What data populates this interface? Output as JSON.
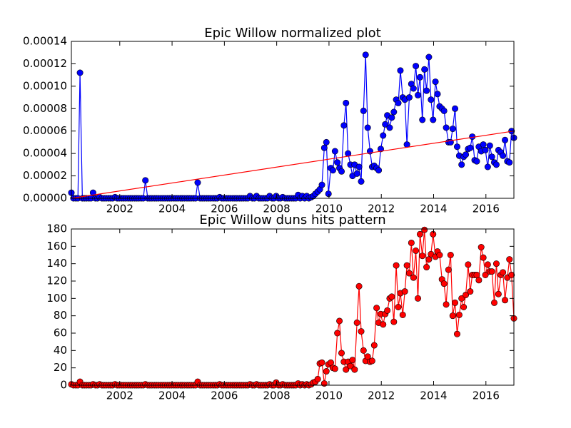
{
  "chart_data": [
    {
      "type": "line",
      "title": "Epic Willow normalized plot",
      "xlim": [
        2000.15,
        2017.07
      ],
      "xticks": [
        2002,
        2004,
        2006,
        2008,
        2010,
        2012,
        2014,
        2016
      ],
      "ylim": [
        0,
        0.00014
      ],
      "yticks": [
        {
          "value": 0,
          "label": "0.00000"
        },
        {
          "value": 2e-05,
          "label": "0.00002"
        },
        {
          "value": 4e-05,
          "label": "0.00004"
        },
        {
          "value": 6e-05,
          "label": "0.00006"
        },
        {
          "value": 8e-05,
          "label": "0.00008"
        },
        {
          "value": 0.0001,
          "label": "0.00010"
        },
        {
          "value": 0.00012,
          "label": "0.00012"
        },
        {
          "value": 0.00014,
          "label": "0.00014"
        }
      ],
      "x": [
        2000.15,
        2000.23,
        2000.32,
        2000.4,
        2000.48,
        2000.57,
        2000.65,
        2000.73,
        2000.82,
        2000.9,
        2000.98,
        2001.07,
        2001.15,
        2001.23,
        2001.32,
        2001.4,
        2001.48,
        2001.57,
        2001.65,
        2001.73,
        2001.82,
        2001.9,
        2001.98,
        2002.07,
        2002.15,
        2002.23,
        2002.32,
        2002.4,
        2002.48,
        2002.57,
        2002.65,
        2002.73,
        2002.82,
        2002.9,
        2002.98,
        2003.07,
        2003.15,
        2003.23,
        2003.32,
        2003.4,
        2003.48,
        2003.57,
        2003.65,
        2003.73,
        2003.82,
        2003.9,
        2003.98,
        2004.07,
        2004.15,
        2004.23,
        2004.32,
        2004.4,
        2004.48,
        2004.57,
        2004.65,
        2004.73,
        2004.82,
        2004.9,
        2004.98,
        2005.07,
        2005.15,
        2005.23,
        2005.32,
        2005.4,
        2005.48,
        2005.57,
        2005.65,
        2005.73,
        2005.82,
        2005.9,
        2005.98,
        2006.07,
        2006.15,
        2006.23,
        2006.32,
        2006.4,
        2006.48,
        2006.57,
        2006.65,
        2006.73,
        2006.82,
        2006.9,
        2006.98,
        2007.07,
        2007.15,
        2007.23,
        2007.32,
        2007.4,
        2007.48,
        2007.57,
        2007.65,
        2007.73,
        2007.82,
        2007.9,
        2007.98,
        2008.07,
        2008.15,
        2008.23,
        2008.32,
        2008.4,
        2008.48,
        2008.57,
        2008.65,
        2008.73,
        2008.82,
        2008.9,
        2008.98,
        2009.07,
        2009.15,
        2009.23,
        2009.32,
        2009.4,
        2009.48,
        2009.57,
        2009.65,
        2009.73,
        2009.82,
        2009.9,
        2009.98,
        2010.07,
        2010.15,
        2010.23,
        2010.32,
        2010.4,
        2010.48,
        2010.57,
        2010.65,
        2010.73,
        2010.82,
        2010.9,
        2010.98,
        2011.07,
        2011.15,
        2011.23,
        2011.32,
        2011.4,
        2011.48,
        2011.57,
        2011.65,
        2011.73,
        2011.82,
        2011.9,
        2011.98,
        2012.07,
        2012.15,
        2012.23,
        2012.32,
        2012.4,
        2012.48,
        2012.57,
        2012.65,
        2012.73,
        2012.82,
        2012.9,
        2012.98,
        2013.07,
        2013.15,
        2013.23,
        2013.32,
        2013.4,
        2013.48,
        2013.57,
        2013.65,
        2013.73,
        2013.82,
        2013.9,
        2013.98,
        2014.07,
        2014.15,
        2014.23,
        2014.32,
        2014.4,
        2014.48,
        2014.57,
        2014.65,
        2014.73,
        2014.82,
        2014.9,
        2014.98,
        2015.07,
        2015.15,
        2015.23,
        2015.32,
        2015.4,
        2015.48,
        2015.57,
        2015.65,
        2015.73,
        2015.82,
        2015.9,
        2015.98,
        2016.07,
        2016.15,
        2016.23,
        2016.32,
        2016.4,
        2016.48,
        2016.57,
        2016.65,
        2016.73,
        2016.82,
        2016.9,
        2016.98,
        2017.07
      ],
      "series": [
        {
          "color": "#0000ff",
          "marker": true,
          "values": [
            5e-06,
            0,
            0,
            0,
            0.000112,
            0,
            0,
            0,
            0,
            0,
            5e-06,
            0,
            0,
            1e-06,
            0,
            0,
            0,
            0,
            0,
            0,
            1e-06,
            0,
            0,
            0,
            0,
            0,
            0,
            0,
            0,
            0,
            0,
            0,
            0,
            0,
            1.6e-05,
            0,
            0,
            0,
            0,
            0,
            0,
            0,
            0,
            0,
            0,
            0,
            0,
            0,
            0,
            0,
            0,
            0,
            0,
            0,
            0,
            0,
            0,
            0,
            1.4e-05,
            0,
            0,
            0,
            0,
            0,
            0,
            0,
            0,
            0,
            1e-06,
            0,
            0,
            0,
            0,
            0,
            0,
            0,
            0,
            0,
            0,
            0,
            0,
            0,
            2e-06,
            0,
            0,
            2e-06,
            0,
            0,
            0,
            0,
            0,
            2e-06,
            0,
            0,
            2e-06,
            0,
            0,
            1e-06,
            0,
            0,
            0,
            0,
            0,
            0,
            3e-06,
            0,
            2e-06,
            0,
            2e-06,
            0,
            1e-06,
            2e-06,
            4e-06,
            6e-06,
            8e-06,
            1.2e-05,
            4.5e-05,
            5e-05,
            4e-06,
            2.7e-05,
            2.5e-05,
            4.2e-05,
            3.2e-05,
            2.7e-05,
            2.4e-05,
            6.5e-05,
            8.5e-05,
            4e-05,
            3e-05,
            2e-05,
            3e-05,
            2.2e-05,
            2.8e-05,
            1.5e-05,
            7.8e-05,
            0.000128,
            6.3e-05,
            4.2e-05,
            2.8e-05,
            2.9e-05,
            2.7e-05,
            2.5e-05,
            4.4e-05,
            5.6e-05,
            6.6e-05,
            7.4e-05,
            6.3e-05,
            7.2e-05,
            7.7e-05,
            8.8e-05,
            8.5e-05,
            0.000114,
            9e-05,
            8.8e-05,
            4.8e-05,
            9e-05,
            0.000102,
            9.8e-05,
            0.000118,
            9.2e-05,
            0.000108,
            7e-05,
            0.000115,
            9.6e-05,
            0.000126,
            8.8e-05,
            7e-05,
            0.000104,
            9.3e-05,
            8.2e-05,
            8e-05,
            7.8e-05,
            6.3e-05,
            5e-05,
            5e-05,
            6.2e-05,
            8e-05,
            4.6e-05,
            3.8e-05,
            3e-05,
            3.7e-05,
            3.9e-05,
            4.4e-05,
            4.5e-05,
            5.5e-05,
            3.4e-05,
            3.3e-05,
            4.6e-05,
            4.2e-05,
            4.8e-05,
            4.3e-05,
            2.8e-05,
            4.7e-05,
            3.7e-05,
            3.2e-05,
            3e-05,
            4.3e-05,
            4.1e-05,
            3.8e-05,
            5.2e-05,
            3.3e-05,
            3.2e-05,
            6e-05,
            5.4e-05
          ]
        },
        {
          "color": "#ff0000",
          "marker": false,
          "x": [
            2000.15,
            2017.07
          ],
          "values": [
            0,
            6e-05
          ]
        }
      ]
    },
    {
      "type": "line",
      "title": "Epic Willow duns hits pattern",
      "xlim": [
        2000.15,
        2017.07
      ],
      "xticks": [
        2002,
        2004,
        2006,
        2008,
        2010,
        2012,
        2014,
        2016
      ],
      "ylim": [
        0,
        180
      ],
      "yticks": [
        0,
        20,
        40,
        60,
        80,
        100,
        120,
        140,
        160,
        180
      ],
      "x": [
        2000.15,
        2000.23,
        2000.32,
        2000.4,
        2000.48,
        2000.57,
        2000.65,
        2000.73,
        2000.82,
        2000.9,
        2000.98,
        2001.07,
        2001.15,
        2001.23,
        2001.32,
        2001.4,
        2001.48,
        2001.57,
        2001.65,
        2001.73,
        2001.82,
        2001.9,
        2001.98,
        2002.07,
        2002.15,
        2002.23,
        2002.32,
        2002.4,
        2002.48,
        2002.57,
        2002.65,
        2002.73,
        2002.82,
        2002.9,
        2002.98,
        2003.07,
        2003.15,
        2003.23,
        2003.32,
        2003.4,
        2003.48,
        2003.57,
        2003.65,
        2003.73,
        2003.82,
        2003.9,
        2003.98,
        2004.07,
        2004.15,
        2004.23,
        2004.32,
        2004.4,
        2004.48,
        2004.57,
        2004.65,
        2004.73,
        2004.82,
        2004.9,
        2004.98,
        2005.07,
        2005.15,
        2005.23,
        2005.32,
        2005.4,
        2005.48,
        2005.57,
        2005.65,
        2005.73,
        2005.82,
        2005.9,
        2005.98,
        2006.07,
        2006.15,
        2006.23,
        2006.32,
        2006.4,
        2006.48,
        2006.57,
        2006.65,
        2006.73,
        2006.82,
        2006.9,
        2006.98,
        2007.07,
        2007.15,
        2007.23,
        2007.32,
        2007.4,
        2007.48,
        2007.57,
        2007.65,
        2007.73,
        2007.82,
        2007.9,
        2007.98,
        2008.07,
        2008.15,
        2008.23,
        2008.32,
        2008.4,
        2008.48,
        2008.57,
        2008.65,
        2008.73,
        2008.82,
        2008.9,
        2008.98,
        2009.07,
        2009.15,
        2009.23,
        2009.32,
        2009.4,
        2009.48,
        2009.57,
        2009.65,
        2009.73,
        2009.82,
        2009.9,
        2009.98,
        2010.07,
        2010.15,
        2010.23,
        2010.32,
        2010.4,
        2010.48,
        2010.57,
        2010.65,
        2010.73,
        2010.82,
        2010.9,
        2010.98,
        2011.07,
        2011.15,
        2011.23,
        2011.32,
        2011.4,
        2011.48,
        2011.57,
        2011.65,
        2011.73,
        2011.82,
        2011.9,
        2011.98,
        2012.07,
        2012.15,
        2012.23,
        2012.32,
        2012.4,
        2012.48,
        2012.57,
        2012.65,
        2012.73,
        2012.82,
        2012.9,
        2012.98,
        2013.07,
        2013.15,
        2013.23,
        2013.32,
        2013.4,
        2013.48,
        2013.57,
        2013.65,
        2013.73,
        2013.82,
        2013.9,
        2013.98,
        2014.07,
        2014.15,
        2014.23,
        2014.32,
        2014.4,
        2014.48,
        2014.57,
        2014.65,
        2014.73,
        2014.82,
        2014.9,
        2014.98,
        2015.07,
        2015.15,
        2015.23,
        2015.32,
        2015.4,
        2015.48,
        2015.57,
        2015.65,
        2015.73,
        2015.82,
        2015.9,
        2015.98,
        2016.07,
        2016.15,
        2016.23,
        2016.32,
        2016.4,
        2016.48,
        2016.57,
        2016.65,
        2016.73,
        2016.82,
        2016.9,
        2016.98,
        2017.07
      ],
      "series": [
        {
          "color": "#ff0000",
          "marker": true,
          "values": [
            1,
            0,
            0,
            0,
            4,
            0,
            0,
            0,
            0,
            0,
            1,
            0,
            0,
            1,
            0,
            0,
            0,
            0,
            0,
            0,
            1,
            0,
            0,
            0,
            0,
            0,
            0,
            0,
            0,
            0,
            0,
            0,
            0,
            0,
            1,
            0,
            0,
            0,
            0,
            0,
            0,
            0,
            0,
            0,
            0,
            0,
            0,
            0,
            0,
            0,
            0,
            0,
            0,
            0,
            0,
            0,
            0,
            0,
            4,
            0,
            0,
            0,
            0,
            0,
            0,
            0,
            0,
            0,
            1,
            0,
            0,
            0,
            0,
            0,
            0,
            0,
            0,
            0,
            0,
            0,
            0,
            0,
            1,
            0,
            0,
            1,
            0,
            0,
            0,
            0,
            0,
            1,
            0,
            0,
            3,
            0,
            0,
            1,
            0,
            0,
            0,
            0,
            0,
            0,
            2,
            0,
            1,
            0,
            1,
            0,
            1,
            3,
            4,
            7,
            25,
            26,
            2,
            16,
            24,
            26,
            20,
            19,
            60,
            74,
            37,
            27,
            18,
            27,
            22,
            29,
            18,
            72,
            114,
            62,
            40,
            28,
            33,
            27,
            28,
            46,
            89,
            72,
            82,
            70,
            82,
            86,
            100,
            102,
            73,
            138,
            90,
            106,
            81,
            108,
            138,
            129,
            164,
            124,
            155,
            100,
            174,
            149,
            179,
            136,
            145,
            151,
            174,
            148,
            154,
            150,
            122,
            117,
            93,
            133,
            150,
            80,
            95,
            59,
            81,
            100,
            90,
            104,
            139,
            108,
            127,
            127,
            127,
            121,
            159,
            147,
            127,
            139,
            131,
            131,
            95,
            140,
            105,
            127,
            130,
            98,
            124,
            145,
            127,
            77
          ]
        }
      ]
    }
  ]
}
